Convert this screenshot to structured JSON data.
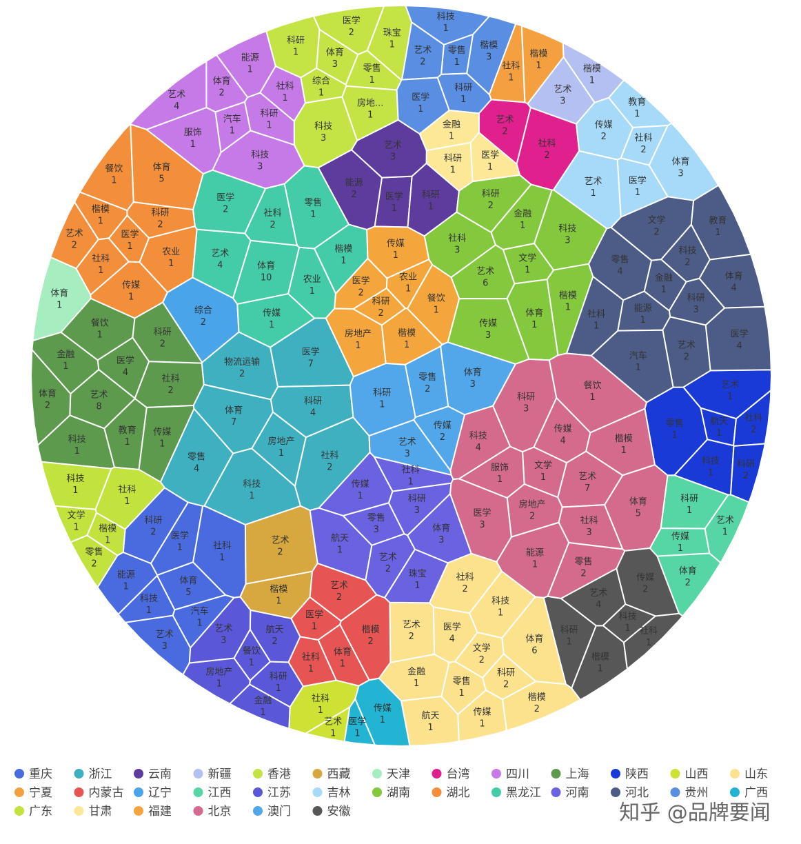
{
  "chart_data": {
    "type": "voronoi_treemap",
    "legend": "bottom",
    "watermark": "知乎 @品牌要闻",
    "series": [
      {
        "name": "重庆",
        "color": "#4a6be0",
        "categories": [
          "体育",
          "科技",
          "医学",
          "汽车",
          "能源",
          "社科",
          "艺术",
          "科研"
        ],
        "values": [
          5,
          1,
          1,
          1,
          1,
          1,
          3,
          2
        ]
      },
      {
        "name": "浙江",
        "color": "#3fb0c0",
        "categories": [
          "房地产",
          "体育",
          "科研",
          "科技",
          "物流运输",
          "社科",
          "零售",
          "医学"
        ],
        "values": [
          1,
          7,
          4,
          1,
          2,
          2,
          4,
          7
        ]
      },
      {
        "name": "云南",
        "color": "#5e3c9e",
        "categories": [
          "医学",
          "艺术",
          "科研",
          "能源"
        ],
        "values": [
          1,
          3,
          1,
          2
        ]
      },
      {
        "name": "新疆",
        "color": "#b4c0f2",
        "categories": [
          "艺术",
          "楷模"
        ],
        "values": [
          3,
          1
        ]
      },
      {
        "name": "香港",
        "color": "#c4e446",
        "categories": [
          "体育",
          "零售",
          "综合",
          "医学",
          "房地...",
          "科研",
          "珠宝",
          "科技"
        ],
        "values": [
          3,
          1,
          1,
          2,
          1,
          1,
          1,
          3
        ]
      },
      {
        "name": "西藏",
        "color": "#d8a840",
        "categories": [
          "艺术",
          "楷模"
        ],
        "values": [
          2,
          1
        ]
      },
      {
        "name": "天津",
        "color": "#a6eec0",
        "categories": [
          "体育"
        ],
        "values": [
          1
        ]
      },
      {
        "name": "台湾",
        "color": "#e0208c",
        "categories": [
          "社科",
          "艺术"
        ],
        "values": [
          2,
          2
        ]
      },
      {
        "name": "四川",
        "color": "#c67ae8",
        "categories": [
          "汽车",
          "体育",
          "科研",
          "服饰",
          "能源",
          "科技",
          "艺术",
          "社科"
        ],
        "values": [
          1,
          2,
          1,
          1,
          1,
          3,
          4,
          1
        ]
      },
      {
        "name": "上海",
        "color": "#5e9a4e",
        "categories": [
          "艺术",
          "医学",
          "教育",
          "金融",
          "社科",
          "科技",
          "餐饮",
          "传媒",
          "体育",
          "科研"
        ],
        "values": [
          8,
          4,
          1,
          1,
          2,
          1,
          1,
          1,
          2,
          2
        ]
      },
      {
        "name": "陕西",
        "color": "#1a3ad8",
        "categories": [
          "航天",
          "社科",
          "科技",
          "艺术",
          "科研",
          "零售"
        ],
        "values": [
          1,
          2,
          1,
          1,
          2,
          1
        ]
      },
      {
        "name": "山西",
        "color": "#cde234",
        "categories": [
          "社科",
          "艺术"
        ],
        "values": [
          1,
          1
        ]
      },
      {
        "name": "山东",
        "color": "#fde28e",
        "categories": [
          "文学",
          "零售",
          "医学",
          "科研",
          "金融",
          "科技",
          "传媒",
          "艺术",
          "体育",
          "航天",
          "社科",
          "楷模"
        ],
        "values": [
          2,
          1,
          4,
          2,
          1,
          1,
          1,
          2,
          6,
          1,
          2,
          2
        ]
      },
      {
        "name": "宁夏",
        "color": "#f4a040",
        "categories": [
          "楷模",
          "社科"
        ],
        "values": [
          1,
          1
        ]
      },
      {
        "name": "内蒙古",
        "color": "#e65454",
        "categories": [
          "体育",
          "医学",
          "楷模",
          "社科",
          "艺术"
        ],
        "values": [
          1,
          1,
          2,
          1,
          2
        ]
      },
      {
        "name": "辽宁",
        "color": "#4aa4ea",
        "categories": [
          "综合"
        ],
        "values": [
          2
        ]
      },
      {
        "name": "江西",
        "color": "#56d6a4",
        "categories": [
          "传媒",
          "艺术",
          "体育",
          "科研"
        ],
        "values": [
          1,
          1,
          2,
          1
        ]
      },
      {
        "name": "江苏",
        "color": "#5a58d8",
        "categories": [
          "餐饮",
          "科研",
          "房地产",
          "航天",
          "金融",
          "艺术"
        ],
        "values": [
          1,
          1,
          1,
          2,
          1,
          3
        ]
      },
      {
        "name": "吉林",
        "color": "#a6daf8",
        "categories": [
          "社科",
          "医学",
          "传媒",
          "体育",
          "艺术",
          "教育"
        ],
        "values": [
          2,
          1,
          2,
          3,
          1,
          1
        ]
      },
      {
        "name": "湖南",
        "color": "#84c83e",
        "categories": [
          "文学",
          "艺术",
          "金融",
          "体育",
          "社科",
          "科技",
          "传媒",
          "科研",
          "楷模"
        ],
        "values": [
          1,
          6,
          1,
          1,
          3,
          3,
          3,
          2,
          1
        ]
      },
      {
        "name": "湖北",
        "color": "#f38e3a",
        "categories": [
          "医学",
          "楷模",
          "科研",
          "社科",
          "餐饮",
          "农业",
          "艺术",
          "体育",
          "传媒"
        ],
        "values": [
          1,
          1,
          2,
          1,
          1,
          1,
          2,
          5,
          1
        ]
      },
      {
        "name": "黑龙江",
        "color": "#44cca8",
        "categories": [
          "体育",
          "社科",
          "农业",
          "艺术",
          "零售",
          "传媒",
          "医学",
          "楷模"
        ],
        "values": [
          10,
          2,
          1,
          4,
          1,
          1,
          2,
          1
        ]
      },
      {
        "name": "河南",
        "color": "#6a62e0",
        "categories": [
          "零售",
          "科研",
          "艺术",
          "传媒",
          "体育",
          "航天",
          "社科",
          "珠宝"
        ],
        "values": [
          3,
          3,
          2,
          1,
          3,
          1,
          1,
          1
        ]
      },
      {
        "name": "河北",
        "color": "#4c5c86",
        "categories": [
          "金融",
          "科研",
          "能源",
          "科技",
          "艺术",
          "零售",
          "体育",
          "汽车",
          "文学",
          "医学",
          "社科",
          "教育"
        ],
        "values": [
          1,
          3,
          1,
          2,
          2,
          4,
          4,
          1,
          2,
          4,
          1,
          1
        ]
      },
      {
        "name": "贵州",
        "color": "#5a8ee2",
        "categories": [
          "零售",
          "科研",
          "艺术",
          "楷模",
          "医学",
          "科技"
        ],
        "values": [
          1,
          1,
          2,
          3,
          1,
          1
        ]
      },
      {
        "name": "广西",
        "color": "#22b4d2",
        "categories": [
          "传媒",
          "医学"
        ],
        "values": [
          1,
          1
        ]
      },
      {
        "name": "广东",
        "color": "#c2e23e",
        "categories": [
          "楷模",
          "文学",
          "社科",
          "零售",
          "科技"
        ],
        "values": [
          1,
          1,
          1,
          2,
          1
        ]
      },
      {
        "name": "甘肃",
        "color": "#fce896",
        "categories": [
          "科研",
          "金融",
          "医学"
        ],
        "values": [
          1,
          1,
          1
        ]
      },
      {
        "name": "福建",
        "color": "#f4a63c",
        "categories": [
          "科研",
          "农业",
          "楷模",
          "医学",
          "餐饮",
          "房地产",
          "传媒"
        ],
        "values": [
          2,
          1,
          1,
          2,
          1,
          1,
          1
        ]
      },
      {
        "name": "北京",
        "color": "#d46a8c",
        "categories": [
          "文学",
          "艺术",
          "房地产",
          "传媒",
          "社科",
          "服饰",
          "楷模",
          "能源",
          "科研",
          "体育",
          "医学",
          "餐饮",
          "零售",
          "科技"
        ],
        "values": [
          1,
          7,
          2,
          4,
          3,
          1,
          1,
          1,
          3,
          5,
          3,
          1,
          2,
          4
        ]
      },
      {
        "name": "澳门",
        "color": "#52a6ea",
        "categories": [
          "零售",
          "传媒",
          "科研",
          "体育",
          "艺术"
        ],
        "values": [
          2,
          2,
          1,
          3,
          3
        ]
      },
      {
        "name": "安徽",
        "color": "#575757",
        "categories": [
          "科技",
          "楷模",
          "艺术",
          "社科",
          "科研",
          "传媒"
        ],
        "values": [
          1,
          1,
          4,
          1,
          1,
          2
        ]
      }
    ]
  }
}
